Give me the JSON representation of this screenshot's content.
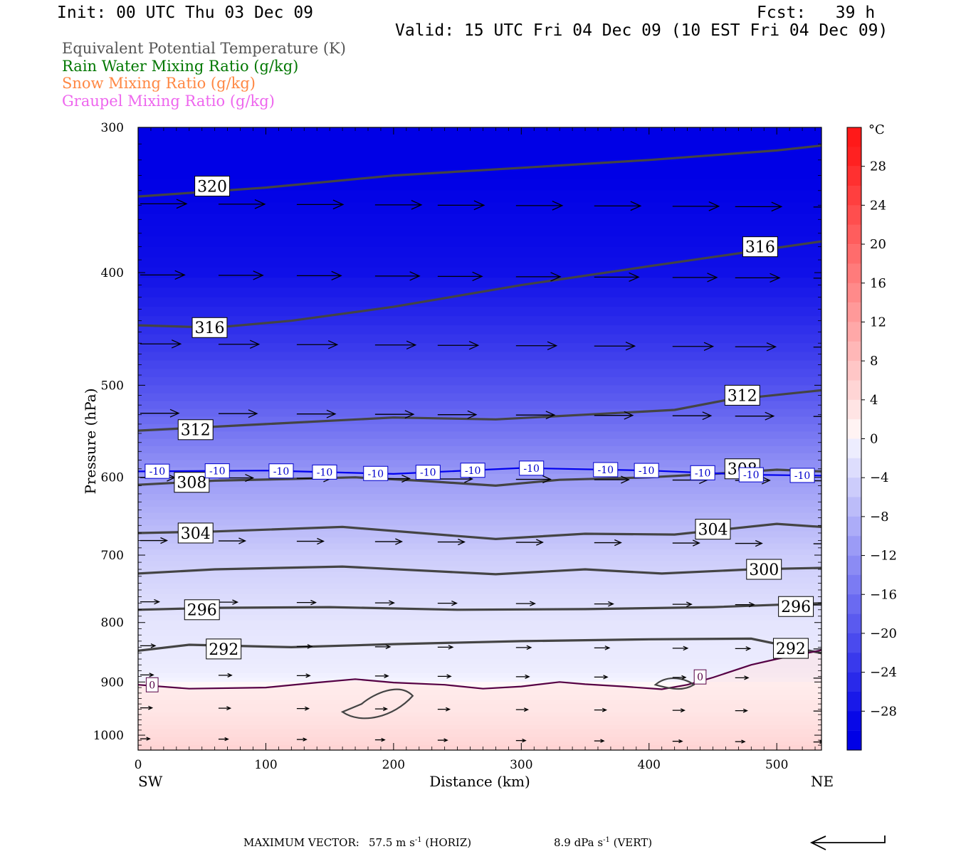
{
  "header": {
    "init": "Init: 00 UTC Thu 03 Dec 09",
    "fcst": "Fcst:   39 h",
    "valid": "Valid: 15 UTC Fri 04 Dec 09 (10 EST Fri 04 Dec 09)"
  },
  "legend": {
    "theta_e": "Equivalent Potential Temperature (K)",
    "rain": "Rain Water Mixing Ratio (g/kg)",
    "snow": "Snow Mixing Ratio (g/kg)",
    "graupel": "Graupel Mixing Ratio (g/kg)",
    "colors": {
      "theta_e": "#555555",
      "rain": "#007700",
      "snow": "#ff8844",
      "graupel": "#ee66ee"
    }
  },
  "footer": {
    "max_label": "MAXIMUM VECTOR:",
    "horiz_value": "57.5 m s",
    "horiz_exp": "-1",
    "horiz_unit": "(HORIZ)",
    "vert_value": "8.9 dPa s",
    "vert_exp": "-1",
    "vert_unit": "(VERT)"
  },
  "chart_data": {
    "type": "contour-cross-section",
    "xlabel": "Distance (km)",
    "ylabel": "Pressure (hPa)",
    "x_end_labels": {
      "left": "SW",
      "right": "NE"
    },
    "xlim": [
      0,
      535
    ],
    "ylim": [
      300,
      1030
    ],
    "y_log": true,
    "x_ticks": [
      0,
      100,
      200,
      300,
      400,
      500
    ],
    "y_ticks": [
      300,
      400,
      500,
      600,
      700,
      800,
      900,
      1000
    ],
    "colorbar": {
      "unit": "°C",
      "labels": [
        28,
        24,
        20,
        16,
        12,
        8,
        4,
        0,
        -4,
        -8,
        -12,
        -16,
        -20,
        -24,
        -28
      ],
      "range": [
        -32,
        32
      ]
    },
    "theta_e_contours": [
      {
        "level": "320",
        "points": [
          [
            0,
            344
          ],
          [
            100,
            338
          ],
          [
            200,
            330
          ],
          [
            300,
            325
          ],
          [
            400,
            320
          ],
          [
            500,
            314
          ],
          [
            535,
            311
          ]
        ],
        "label_at": [
          58,
          337
        ]
      },
      {
        "level": "316",
        "points": [
          [
            0,
            444
          ],
          [
            60,
            446
          ],
          [
            120,
            440
          ],
          [
            200,
            428
          ],
          [
            300,
            410
          ],
          [
            400,
            395
          ],
          [
            470,
            385
          ],
          [
            535,
            376
          ]
        ],
        "label_at": [
          56,
          446
        ]
      },
      {
        "level": "316",
        "points": [
          [
            0,
            444
          ],
          [
            535,
            376
          ]
        ],
        "label_at": [
          487,
          380
        ],
        "hidden": true
      },
      {
        "level": "312",
        "points": [
          [
            0,
            547
          ],
          [
            100,
            540
          ],
          [
            200,
            533
          ],
          [
            280,
            535
          ],
          [
            350,
            530
          ],
          [
            420,
            525
          ],
          [
            460,
            515
          ],
          [
            535,
            505
          ]
        ],
        "label_at": [
          45,
          546
        ]
      },
      {
        "level": "312",
        "points": [
          [
            0,
            547
          ],
          [
            535,
            505
          ]
        ],
        "label_at": [
          473,
          510
        ],
        "hidden": true
      },
      {
        "level": "308",
        "points": [
          [
            0,
            609
          ],
          [
            60,
            604
          ],
          [
            120,
            602
          ],
          [
            170,
            600
          ],
          [
            220,
            604
          ],
          [
            280,
            610
          ],
          [
            330,
            603
          ],
          [
            400,
            600
          ],
          [
            450,
            596
          ],
          [
            500,
            591
          ],
          [
            535,
            593
          ]
        ],
        "label_at": [
          42,
          606
        ]
      },
      {
        "level": "308",
        "points": [
          [
            0,
            609
          ],
          [
            535,
            593
          ]
        ],
        "label_at": [
          473,
          590
        ],
        "hidden": true
      },
      {
        "level": "304",
        "points": [
          [
            0,
            670
          ],
          [
            60,
            668
          ],
          [
            160,
            662
          ],
          [
            280,
            678
          ],
          [
            350,
            671
          ],
          [
            420,
            672
          ],
          [
            500,
            658
          ],
          [
            535,
            662
          ]
        ],
        "label_at": [
          45,
          670
        ]
      },
      {
        "level": "304",
        "points": [
          [
            0,
            670
          ],
          [
            535,
            662
          ]
        ],
        "label_at": [
          450,
          665
        ],
        "hidden": true
      },
      {
        "level": "300",
        "points": [
          [
            0,
            726
          ],
          [
            60,
            720
          ],
          [
            160,
            716
          ],
          [
            280,
            727
          ],
          [
            350,
            720
          ],
          [
            410,
            726
          ],
          [
            480,
            720
          ],
          [
            535,
            718
          ]
        ],
        "label_at": [
          490,
          720
        ]
      },
      {
        "level": "296",
        "points": [
          [
            0,
            780
          ],
          [
            60,
            777
          ],
          [
            150,
            776
          ],
          [
            250,
            780
          ],
          [
            350,
            779
          ],
          [
            450,
            776
          ],
          [
            535,
            770
          ]
        ],
        "label_at": [
          50,
          780
        ]
      },
      {
        "level": "296",
        "points": [
          [
            0,
            780
          ],
          [
            535,
            770
          ]
        ],
        "label_at": [
          515,
          775
        ],
        "hidden": true
      },
      {
        "level": "292",
        "points": [
          [
            0,
            846
          ],
          [
            40,
            836
          ],
          [
            120,
            840
          ],
          [
            200,
            835
          ],
          [
            300,
            830
          ],
          [
            400,
            827
          ],
          [
            480,
            826
          ],
          [
            535,
            850
          ]
        ],
        "label_at": [
          67,
          843
        ]
      },
      {
        "level": "292",
        "points": [
          [
            0,
            846
          ],
          [
            535,
            850
          ]
        ],
        "label_at": [
          511,
          842
        ],
        "hidden": true
      }
    ],
    "isotherm_minus10": {
      "level": "-10",
      "color": "#0000ee",
      "points": [
        [
          0,
          593
        ],
        [
          100,
          592
        ],
        [
          200,
          596
        ],
        [
          300,
          589
        ],
        [
          400,
          592
        ],
        [
          480,
          597
        ],
        [
          535,
          598
        ]
      ],
      "labels_x": [
        15,
        62,
        112,
        146,
        186,
        227,
        262,
        308,
        366,
        398,
        442,
        480,
        520
      ]
    },
    "isotherm_zero": {
      "level": "0",
      "color": "#550044",
      "points": [
        [
          0,
          905
        ],
        [
          40,
          912
        ],
        [
          100,
          910
        ],
        [
          140,
          901
        ],
        [
          170,
          895
        ],
        [
          200,
          901
        ],
        [
          240,
          905
        ],
        [
          270,
          912
        ],
        [
          300,
          908
        ],
        [
          330,
          900
        ],
        [
          350,
          904
        ],
        [
          380,
          908
        ],
        [
          410,
          913
        ],
        [
          430,
          905
        ],
        [
          450,
          892
        ],
        [
          480,
          870
        ],
        [
          500,
          860
        ],
        [
          535,
          845
        ]
      ],
      "labels": [
        [
          11,
          905
        ],
        [
          440,
          891
        ]
      ]
    },
    "vector_rows": [
      {
        "p": 350,
        "speed": 1.0
      },
      {
        "p": 403,
        "speed": 0.95
      },
      {
        "p": 462,
        "speed": 0.85
      },
      {
        "p": 530,
        "speed": 0.8
      },
      {
        "p": 602,
        "speed": 0.7
      },
      {
        "p": 682,
        "speed": 0.5
      },
      {
        "p": 770,
        "speed": 0.3
      },
      {
        "p": 840,
        "speed": 0.2
      },
      {
        "p": 890,
        "speed": 0.15
      },
      {
        "p": 950,
        "speed": 0.12
      },
      {
        "p": 1010,
        "speed": 0.06
      }
    ]
  }
}
